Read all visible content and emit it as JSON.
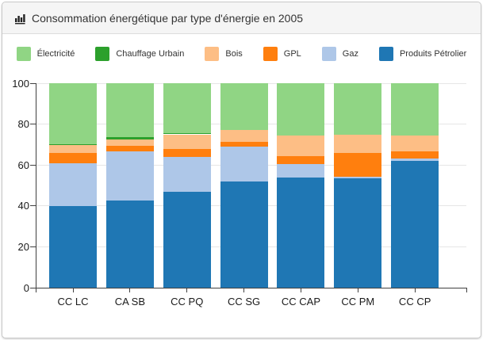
{
  "header": {
    "title": "Consommation énergétique par type d'énergie en 2005",
    "icon": "bar-chart-icon"
  },
  "colors": {
    "card_header_bg": "#f5f5f5",
    "card_border": "#c9c9c9",
    "grid": "#e6e6e6",
    "axis": "#404040",
    "title_text": "#333333",
    "tick_text": "#1a1a1a"
  },
  "chart_data": {
    "type": "bar",
    "stacked": true,
    "title": "Consommation énergétique par type d'énergie en 2005",
    "categories": [
      "CC LC",
      "CA SB",
      "CC PQ",
      "CC SG",
      "CC CAP",
      "CC PM",
      "CC CP"
    ],
    "series": [
      {
        "name": "Produits Pétrolier",
        "color": "#1f77b4",
        "values": [
          40,
          42.5,
          47,
          52,
          54,
          53.5,
          62
        ]
      },
      {
        "name": "Gaz",
        "color": "#aec7e8",
        "values": [
          21,
          24,
          17,
          17,
          6.5,
          0.7,
          1
        ]
      },
      {
        "name": "GPL",
        "color": "#ff7f0e",
        "values": [
          5,
          3,
          4,
          2.5,
          4,
          11.5,
          3.5
        ]
      },
      {
        "name": "Bois",
        "color": "#fdbe85",
        "values": [
          4,
          3,
          7,
          5.5,
          10,
          9.3,
          8
        ]
      },
      {
        "name": "Chauffage Urbain",
        "color": "#2ca02c",
        "values": [
          0.3,
          1,
          0.4,
          0,
          0,
          0,
          0
        ]
      },
      {
        "name": "Électricité",
        "color": "#90d584",
        "values": [
          29.7,
          26.5,
          24.6,
          23,
          25.5,
          25,
          25.5
        ]
      }
    ],
    "legend_order": [
      "Électricité",
      "Chauffage Urbain",
      "Bois",
      "GPL",
      "Gaz",
      "Produits Pétrolier"
    ],
    "legend_position": "top",
    "y_ticks": [
      0,
      20,
      40,
      60,
      80,
      100
    ],
    "ylim": [
      0,
      100
    ],
    "grid": true,
    "xlabel": "",
    "ylabel": ""
  }
}
